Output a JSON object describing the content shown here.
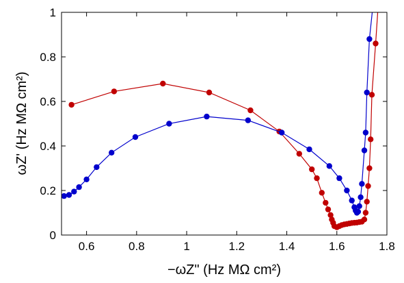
{
  "chart_data": {
    "type": "line",
    "title": "",
    "xlabel": "−ωZ\" (Hz MΩ cm²)",
    "ylabel": "ωZ' (Hz MΩ cm²)",
    "xlim": [
      0.5,
      1.8
    ],
    "ylim": [
      0,
      1
    ],
    "xticks": [
      "0.6",
      "0.8",
      "1",
      "1.2",
      "1.4",
      "1.6",
      "1.8"
    ],
    "yticks": [
      "0",
      "0.2",
      "0.4",
      "0.6",
      "0.8",
      "1"
    ],
    "grid": false,
    "legend": "none",
    "series": [
      {
        "color": "#c00000",
        "points": [
          [
            0.54,
            0.585
          ],
          [
            0.71,
            0.645
          ],
          [
            0.905,
            0.68
          ],
          [
            1.09,
            0.64
          ],
          [
            1.255,
            0.56
          ],
          [
            1.37,
            0.465
          ],
          [
            1.45,
            0.365
          ],
          [
            1.5,
            0.295
          ],
          [
            1.52,
            0.255
          ],
          [
            1.54,
            0.19
          ],
          [
            1.555,
            0.145
          ],
          [
            1.565,
            0.115
          ],
          [
            1.575,
            0.09
          ],
          [
            1.58,
            0.07
          ],
          [
            1.585,
            0.055
          ],
          [
            1.59,
            0.04
          ],
          [
            1.6,
            0.035
          ],
          [
            1.61,
            0.04
          ],
          [
            1.62,
            0.045
          ],
          [
            1.63,
            0.048
          ],
          [
            1.64,
            0.05
          ],
          [
            1.65,
            0.052
          ],
          [
            1.66,
            0.054
          ],
          [
            1.67,
            0.055
          ],
          [
            1.68,
            0.056
          ],
          [
            1.69,
            0.058
          ],
          [
            1.7,
            0.06
          ],
          [
            1.71,
            0.07
          ],
          [
            1.715,
            0.1
          ],
          [
            1.72,
            0.15
          ],
          [
            1.725,
            0.22
          ],
          [
            1.73,
            0.3
          ],
          [
            1.735,
            0.43
          ],
          [
            1.74,
            0.63
          ],
          [
            1.755,
            0.86
          ],
          [
            1.765,
            1.03
          ]
        ]
      },
      {
        "color": "#0000cc",
        "points": [
          [
            0.51,
            0.175
          ],
          [
            0.53,
            0.18
          ],
          [
            0.55,
            0.195
          ],
          [
            0.57,
            0.215
          ],
          [
            0.6,
            0.25
          ],
          [
            0.64,
            0.305
          ],
          [
            0.7,
            0.37
          ],
          [
            0.795,
            0.44
          ],
          [
            0.93,
            0.5
          ],
          [
            1.08,
            0.532
          ],
          [
            1.245,
            0.515
          ],
          [
            1.38,
            0.46
          ],
          [
            1.49,
            0.385
          ],
          [
            1.57,
            0.31
          ],
          [
            1.61,
            0.255
          ],
          [
            1.64,
            0.2
          ],
          [
            1.66,
            0.155
          ],
          [
            1.67,
            0.125
          ],
          [
            1.675,
            0.11
          ],
          [
            1.68,
            0.1
          ],
          [
            1.685,
            0.105
          ],
          [
            1.69,
            0.13
          ],
          [
            1.695,
            0.17
          ],
          [
            1.7,
            0.23
          ],
          [
            1.71,
            0.38
          ],
          [
            1.715,
            0.46
          ],
          [
            1.72,
            0.64
          ],
          [
            1.73,
            0.88
          ],
          [
            1.745,
            1.04
          ]
        ]
      }
    ]
  }
}
